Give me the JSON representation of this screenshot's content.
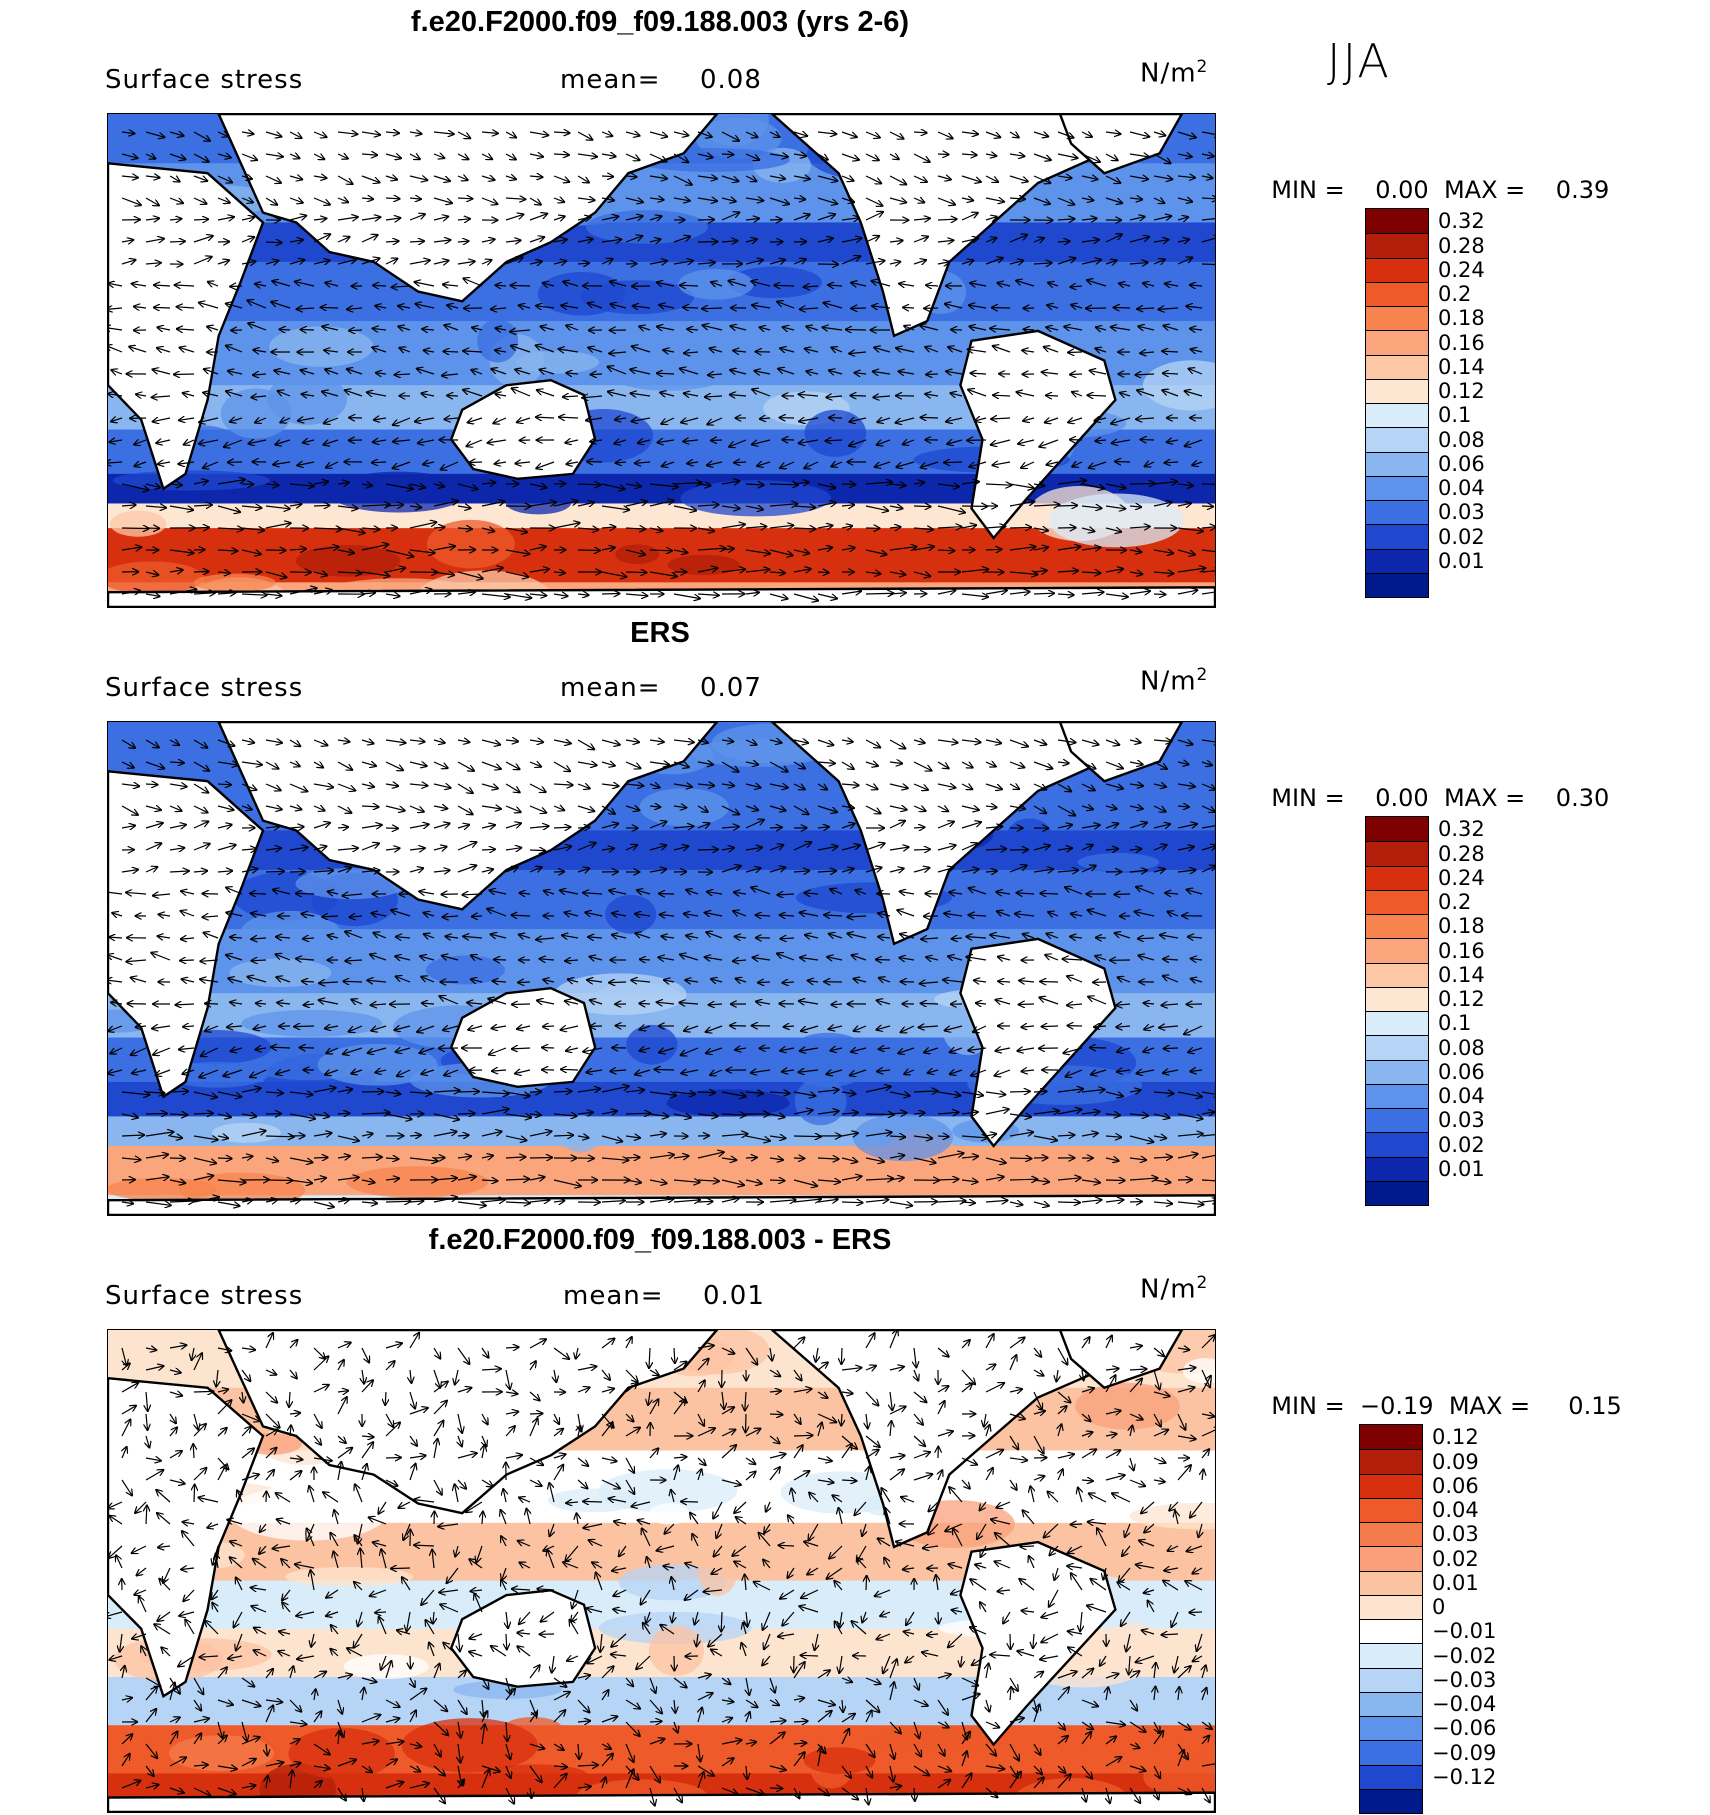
{
  "season": "JJA",
  "panels": [
    {
      "id": "model",
      "title": "f.e20.F2000.f09_f09.188.003 (yrs 2-6)",
      "variable": "Surface stress",
      "mean_label": "mean=",
      "mean_value": "0.08",
      "units_base": "N/m",
      "units_exp": "2",
      "min_label": "MIN =",
      "min_value": "0.00",
      "max_label": "MAX =",
      "max_value": "0.39",
      "colorbar": {
        "levels": [
          "0.32",
          "0.28",
          "0.24",
          "0.2",
          "0.18",
          "0.16",
          "0.14",
          "0.12",
          "0.1",
          "0.08",
          "0.06",
          "0.04",
          "0.03",
          "0.02",
          "0.01"
        ],
        "colors": [
          "#7f0000",
          "#b21e0a",
          "#d7300f",
          "#ee5a2a",
          "#f7844f",
          "#fba57d",
          "#fcc8a8",
          "#fde6d2",
          "#d9ecfa",
          "#b6d4f5",
          "#8ab6ef",
          "#5d93ea",
          "#3b6fe2",
          "#1f48cf",
          "#0c27ac",
          "#001a8c"
        ]
      }
    },
    {
      "id": "obs",
      "title": "ERS",
      "variable": "Surface stress",
      "mean_label": "mean=",
      "mean_value": "0.07",
      "units_base": "N/m",
      "units_exp": "2",
      "min_label": "MIN =",
      "min_value": "0.00",
      "max_label": "MAX =",
      "max_value": "0.30",
      "colorbar": {
        "levels": [
          "0.32",
          "0.28",
          "0.24",
          "0.2",
          "0.18",
          "0.16",
          "0.14",
          "0.12",
          "0.1",
          "0.08",
          "0.06",
          "0.04",
          "0.03",
          "0.02",
          "0.01"
        ],
        "colors": [
          "#7f0000",
          "#b21e0a",
          "#d7300f",
          "#ee5a2a",
          "#f7844f",
          "#fba57d",
          "#fcc8a8",
          "#fde6d2",
          "#d9ecfa",
          "#b6d4f5",
          "#8ab6ef",
          "#5d93ea",
          "#3b6fe2",
          "#1f48cf",
          "#0c27ac",
          "#001a8c"
        ]
      }
    },
    {
      "id": "diff",
      "title": "f.e20.F2000.f09_f09.188.003 - ERS",
      "variable": "Surface stress",
      "mean_label": "mean=",
      "mean_value": "0.01",
      "units_base": "N/m",
      "units_exp": "2",
      "min_label": "MIN =",
      "min_value": "−0.19",
      "max_label": "MAX =",
      "max_value": "0.15",
      "colorbar": {
        "levels": [
          "0.12",
          "0.09",
          "0.06",
          "0.04",
          "0.03",
          "0.02",
          "0.01",
          "0",
          "−0.01",
          "−0.02",
          "−0.03",
          "−0.04",
          "−0.06",
          "−0.09",
          "−0.12"
        ],
        "colors": [
          "#7f0000",
          "#b21e0a",
          "#d7300f",
          "#ee5a2a",
          "#f47c4c",
          "#f9a07b",
          "#fcc3a3",
          "#fde4cf",
          "#ffffff",
          "#d9ecfa",
          "#b6d4f5",
          "#8ab6ef",
          "#5d93ea",
          "#3b6fe2",
          "#1f48cf",
          "#001a8c"
        ]
      }
    }
  ],
  "chart_data": [
    {
      "type": "heatmap",
      "title": "f.e20.F2000.f09_f09.188.003 (yrs 2-6)",
      "variable": "Surface stress",
      "units": "N/m2",
      "mean": 0.08,
      "min": 0.0,
      "max": 0.39,
      "x_range_deg_lon": [
        30,
        390
      ],
      "y_range_deg_lat": [
        -70,
        90
      ]
    },
    {
      "type": "heatmap",
      "title": "ERS",
      "variable": "Surface stress",
      "units": "N/m2",
      "mean": 0.07,
      "min": 0.0,
      "max": 0.3,
      "x_range_deg_lon": [
        30,
        390
      ],
      "y_range_deg_lat": [
        -70,
        90
      ]
    },
    {
      "type": "heatmap",
      "title": "f.e20.F2000.f09_f09.188.003 - ERS",
      "variable": "Surface stress",
      "units": "N/m2",
      "mean": 0.01,
      "min": -0.19,
      "max": 0.15,
      "x_range_deg_lon": [
        30,
        390
      ],
      "y_range_deg_lat": [
        -70,
        90
      ]
    }
  ]
}
